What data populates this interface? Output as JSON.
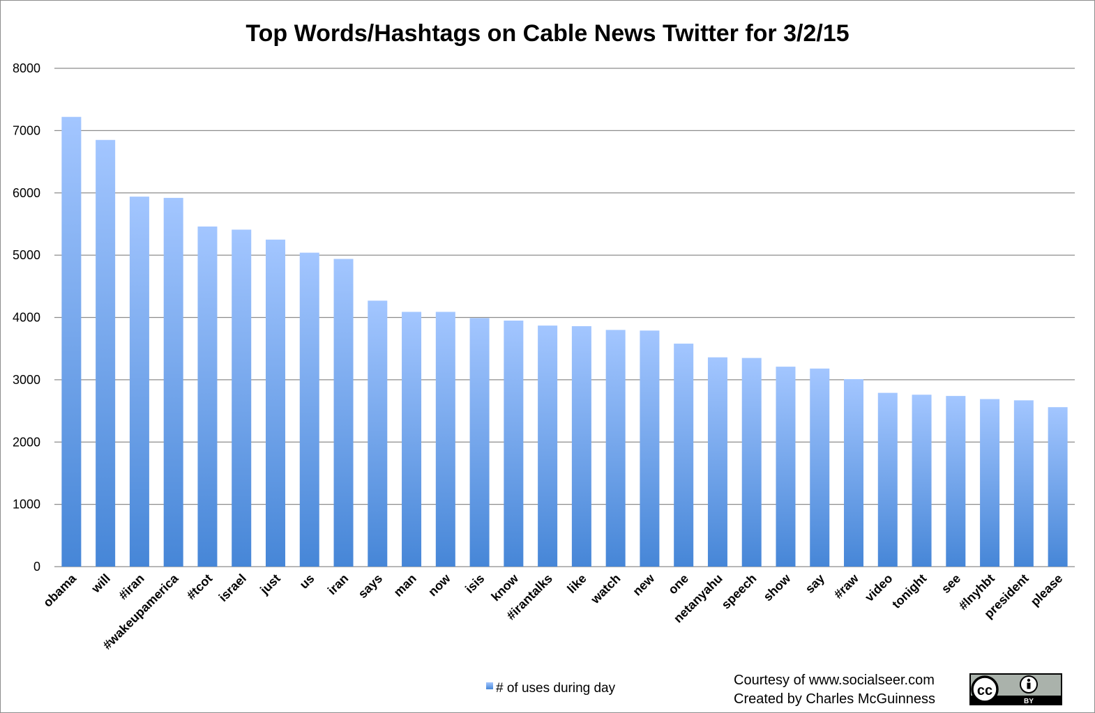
{
  "chart_data": {
    "type": "bar",
    "title": "Top Words/Hashtags on Cable News Twitter for 3/2/15",
    "categories": [
      "obama",
      "will",
      "#iran",
      "#wakeupamerica",
      "#tcot",
      "israel",
      "just",
      "us",
      "iran",
      "says",
      "man",
      "now",
      "isis",
      "know",
      "#irantalks",
      "like",
      "watch",
      "new",
      "one",
      "netanyahu",
      "speech",
      "show",
      "say",
      "#raw",
      "video",
      "tonight",
      "see",
      "#lnyhbt",
      "president",
      "please"
    ],
    "series": [
      {
        "name": "# of uses during day",
        "values": [
          7220,
          6850,
          5940,
          5920,
          5460,
          5410,
          5250,
          5040,
          4940,
          4270,
          4090,
          4090,
          3990,
          3950,
          3870,
          3860,
          3800,
          3790,
          3580,
          3360,
          3350,
          3210,
          3180,
          3010,
          2790,
          2760,
          2740,
          2690,
          2670,
          2560
        ]
      }
    ],
    "ylim": [
      0,
      8000
    ],
    "yticks": [
      0,
      1000,
      2000,
      3000,
      4000,
      5000,
      6000,
      7000,
      8000
    ],
    "grid": true,
    "legend_position": "bottom",
    "bar_color_top": "#a3c6ff",
    "bar_color_bottom": "#4686d7"
  },
  "credits": {
    "line1": "Courtesy of www.socialseer.com",
    "line2": "Created by Charles McGuinness"
  },
  "license_badge": {
    "icon": "cc-by-license-icon",
    "cc_label": "cc",
    "by_label": "BY"
  }
}
